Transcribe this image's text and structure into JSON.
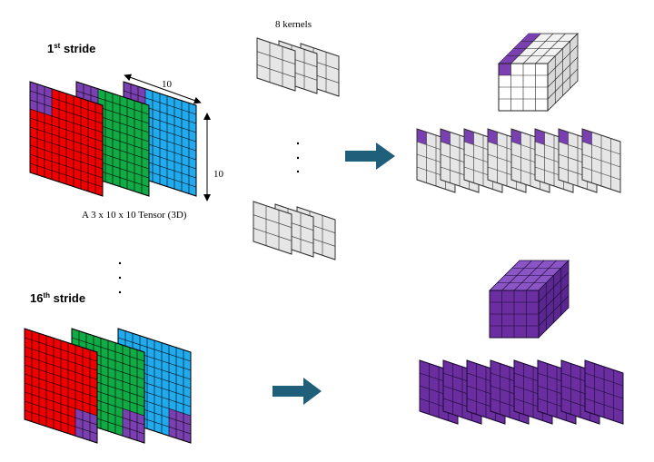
{
  "labels": {
    "stride1_main": "1",
    "stride1_sup": "st",
    "stride1_word": " stride",
    "stride16_main": "16",
    "stride16_sup": "th",
    "stride16_word": " stride",
    "kernels": "8 kernels",
    "tensor_caption": "A 3 x 10 x 10 Tensor (3D)",
    "dim_width": "10",
    "dim_height": "10",
    "ellipsis": "· · ·"
  },
  "colors": {
    "red": "#ee0000",
    "green": "#11aa44",
    "cyan": "#22aaee",
    "purple": "#7a3fb0",
    "dark_purple": "#6a2ea0",
    "kernel_grey": "#e6e6e6",
    "arrow": "#1f5f7a"
  },
  "tensor": {
    "channels": 3,
    "height": 10,
    "width": 10
  },
  "kernel_count": 8
}
